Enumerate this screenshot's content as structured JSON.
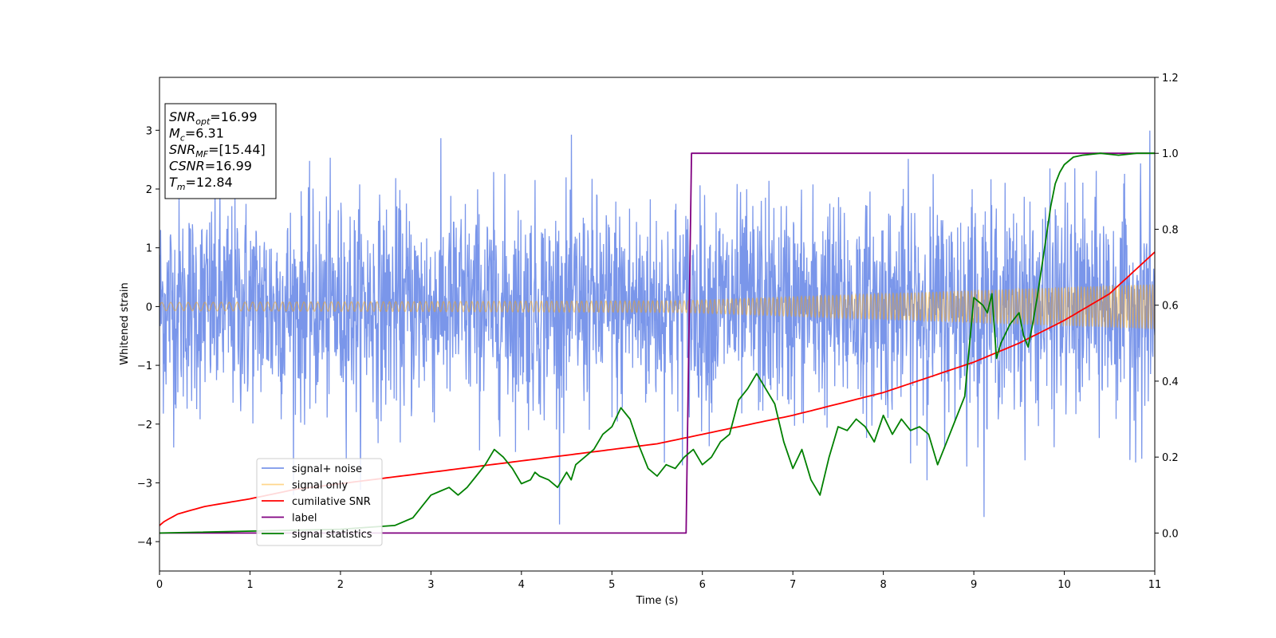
{
  "chart_data": {
    "type": "line",
    "xlabel": "Time (s)",
    "ylabel": "Whitened strain",
    "xlim": [
      0,
      11
    ],
    "ylim_left": [
      -4.5,
      3.9
    ],
    "ylim_right": [
      -0.1,
      1.2
    ],
    "xticks": [
      "0",
      "1",
      "2",
      "3",
      "4",
      "5",
      "6",
      "7",
      "8",
      "9",
      "10",
      "11"
    ],
    "yticks_left": [
      "−4",
      "−3",
      "−2",
      "−1",
      "0",
      "1",
      "2",
      "3"
    ],
    "yticks_left_values": [
      -4,
      -3,
      -2,
      -1,
      0,
      1,
      2,
      3
    ],
    "yticks_right": [
      "0.0",
      "0.2",
      "0.4",
      "0.6",
      "0.8",
      "1.0",
      "1.2"
    ],
    "yticks_right_values": [
      0.0,
      0.2,
      0.4,
      0.6,
      0.8,
      1.0,
      1.2
    ],
    "grid": false,
    "legend_position": "lower-left",
    "annotation": [
      {
        "main": "SNR",
        "sub": "opt",
        "rest": "=16.99"
      },
      {
        "main": "M",
        "sub": "c",
        "rest": "=6.31"
      },
      {
        "main": "SNR",
        "sub": "MF",
        "rest": "=[15.44]"
      },
      {
        "main": "CSNR",
        "sub": "",
        "rest": "=16.99"
      },
      {
        "main": "T",
        "sub": "m",
        "rest": "=12.84"
      }
    ],
    "series": [
      {
        "name": "signal+ noise",
        "axis": "left",
        "color": "#4169E1",
        "kind": "noise",
        "sigma": 0.9,
        "envelope": {
          "x": [
            0,
            5.8,
            11
          ],
          "y": [
            0.07,
            0.1,
            0.38
          ]
        }
      },
      {
        "name": "signal only",
        "axis": "left",
        "color": "#FFA500",
        "kind": "chirp",
        "envelope": {
          "x": [
            0,
            5.8,
            11
          ],
          "y": [
            0.07,
            0.1,
            0.38
          ]
        }
      },
      {
        "name": "cumilative SNR",
        "axis": "right",
        "color": "#FF0000",
        "kind": "curve",
        "x": [
          0,
          0.05,
          0.2,
          0.5,
          1,
          1.5,
          2,
          2.5,
          3,
          3.5,
          4,
          4.5,
          5,
          5.5,
          6,
          6.5,
          7,
          7.5,
          8,
          8.5,
          9,
          9.5,
          10,
          10.5,
          11
        ],
        "y": [
          0.02,
          0.03,
          0.05,
          0.07,
          0.09,
          0.115,
          0.13,
          0.145,
          0.16,
          0.175,
          0.19,
          0.205,
          0.22,
          0.235,
          0.26,
          0.285,
          0.31,
          0.34,
          0.37,
          0.41,
          0.45,
          0.5,
          0.56,
          0.63,
          0.74
        ]
      },
      {
        "name": "label",
        "axis": "right",
        "color": "#800080",
        "kind": "curve",
        "x": [
          0,
          5.82,
          5.88,
          11
        ],
        "y": [
          0.0,
          0.0,
          1.0,
          1.0
        ]
      },
      {
        "name": "signal statistics",
        "axis": "right",
        "color": "#008000",
        "kind": "curve",
        "x": [
          0,
          2.0,
          2.6,
          2.8,
          2.9,
          3.0,
          3.1,
          3.2,
          3.3,
          3.4,
          3.5,
          3.6,
          3.7,
          3.75,
          3.8,
          3.9,
          4.0,
          4.1,
          4.15,
          4.2,
          4.3,
          4.4,
          4.5,
          4.55,
          4.6,
          4.7,
          4.8,
          4.9,
          5.0,
          5.1,
          5.2,
          5.3,
          5.4,
          5.5,
          5.6,
          5.7,
          5.8,
          5.9,
          6.0,
          6.1,
          6.2,
          6.3,
          6.4,
          6.5,
          6.6,
          6.7,
          6.8,
          6.9,
          7.0,
          7.1,
          7.2,
          7.3,
          7.4,
          7.5,
          7.6,
          7.7,
          7.8,
          7.9,
          8.0,
          8.1,
          8.2,
          8.3,
          8.4,
          8.5,
          8.6,
          8.7,
          8.8,
          8.9,
          9.0,
          9.1,
          9.15,
          9.2,
          9.25,
          9.3,
          9.4,
          9.5,
          9.55,
          9.6,
          9.65,
          9.7,
          9.75,
          9.8,
          9.85,
          9.9,
          9.95,
          10.0,
          10.1,
          10.2,
          10.4,
          10.6,
          10.8,
          11.0
        ],
        "y": [
          0.0,
          0.01,
          0.02,
          0.04,
          0.07,
          0.1,
          0.11,
          0.12,
          0.1,
          0.12,
          0.15,
          0.18,
          0.22,
          0.21,
          0.2,
          0.17,
          0.13,
          0.14,
          0.16,
          0.15,
          0.14,
          0.12,
          0.16,
          0.14,
          0.18,
          0.2,
          0.22,
          0.26,
          0.28,
          0.33,
          0.3,
          0.23,
          0.17,
          0.15,
          0.18,
          0.17,
          0.2,
          0.22,
          0.18,
          0.2,
          0.24,
          0.26,
          0.35,
          0.38,
          0.42,
          0.38,
          0.34,
          0.24,
          0.17,
          0.22,
          0.14,
          0.1,
          0.2,
          0.28,
          0.27,
          0.3,
          0.28,
          0.24,
          0.31,
          0.26,
          0.3,
          0.27,
          0.28,
          0.26,
          0.18,
          0.24,
          0.3,
          0.36,
          0.62,
          0.6,
          0.58,
          0.63,
          0.46,
          0.5,
          0.55,
          0.58,
          0.52,
          0.49,
          0.55,
          0.62,
          0.7,
          0.78,
          0.86,
          0.92,
          0.95,
          0.97,
          0.99,
          0.995,
          1.0,
          0.995,
          1.0,
          1.0
        ]
      }
    ]
  }
}
